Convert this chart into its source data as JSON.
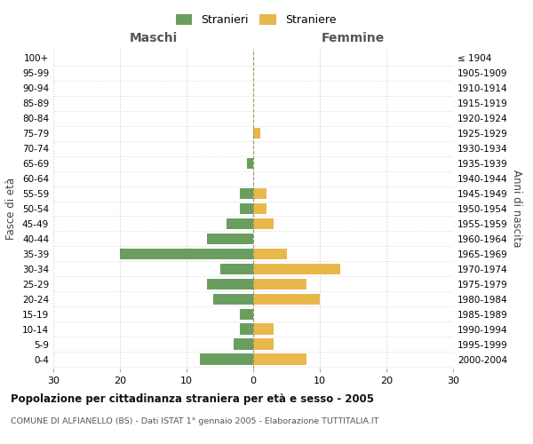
{
  "age_groups": [
    "0-4",
    "5-9",
    "10-14",
    "15-19",
    "20-24",
    "25-29",
    "30-34",
    "35-39",
    "40-44",
    "45-49",
    "50-54",
    "55-59",
    "60-64",
    "65-69",
    "70-74",
    "75-79",
    "80-84",
    "85-89",
    "90-94",
    "95-99",
    "100+"
  ],
  "birth_years": [
    "2000-2004",
    "1995-1999",
    "1990-1994",
    "1985-1989",
    "1980-1984",
    "1975-1979",
    "1970-1974",
    "1965-1969",
    "1960-1964",
    "1955-1959",
    "1950-1954",
    "1945-1949",
    "1940-1944",
    "1935-1939",
    "1930-1934",
    "1925-1929",
    "1920-1924",
    "1915-1919",
    "1910-1914",
    "1905-1909",
    "≤ 1904"
  ],
  "maschi": [
    8,
    3,
    2,
    2,
    6,
    7,
    5,
    20,
    7,
    4,
    2,
    2,
    0,
    1,
    0,
    0,
    0,
    0,
    0,
    0,
    0
  ],
  "femmine": [
    8,
    3,
    3,
    0,
    10,
    8,
    13,
    5,
    0,
    3,
    2,
    2,
    0,
    0,
    0,
    1,
    0,
    0,
    0,
    0,
    0
  ],
  "maschi_color": "#6a9e5e",
  "femmine_color": "#e8b84b",
  "title": "Popolazione per cittadinanza straniera per età e sesso - 2005",
  "subtitle": "COMUNE DI ALFIANELLO (BS) - Dati ISTAT 1° gennaio 2005 - Elaborazione TUTTITALIA.IT",
  "xlabel_left": "Maschi",
  "xlabel_right": "Femmine",
  "ylabel_left": "Fasce di età",
  "ylabel_right": "Anni di nascita",
  "legend_maschi": "Stranieri",
  "legend_femmine": "Straniere",
  "xlim": 30,
  "background_color": "#ffffff",
  "grid_color": "#cccccc"
}
